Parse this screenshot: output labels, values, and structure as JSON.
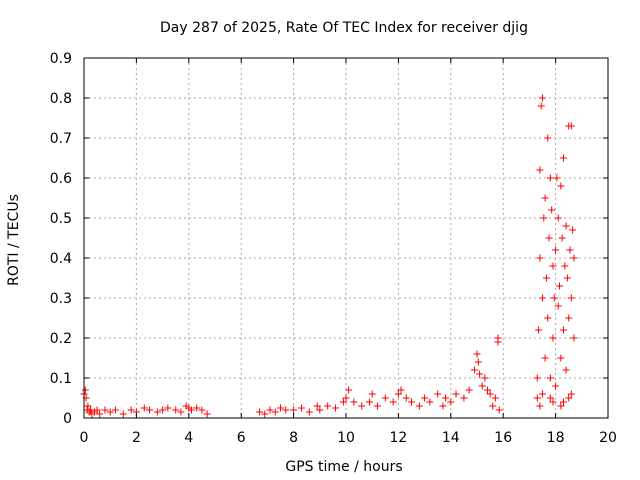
{
  "chart_data": {
    "type": "scatter",
    "title": "Day 287 of 2025, Rate Of TEC Index for receiver djig",
    "xlabel": "GPS time / hours",
    "ylabel": "ROTI / TECUs",
    "xlim": [
      0,
      20
    ],
    "ylim": [
      0,
      0.9
    ],
    "xticks": [
      "0",
      "2",
      "4",
      "6",
      "8",
      "10",
      "12",
      "14",
      "16",
      "18",
      "20"
    ],
    "yticks": [
      "0",
      "0.1",
      "0.2",
      "0.3",
      "0.4",
      "0.5",
      "0.6",
      "0.7",
      "0.8",
      "0.9"
    ],
    "grid": true,
    "marker": "+",
    "series": [
      {
        "name": "ROTI",
        "color": "#ff0000",
        "x": [
          0.0,
          0.05,
          0.08,
          0.12,
          0.15,
          0.2,
          0.25,
          0.3,
          0.4,
          0.5,
          0.6,
          0.8,
          1.0,
          1.2,
          1.5,
          1.8,
          2.0,
          2.3,
          2.5,
          2.8,
          3.0,
          3.2,
          3.5,
          3.7,
          3.9,
          4.0,
          4.1,
          4.3,
          4.5,
          4.7,
          6.7,
          6.9,
          7.1,
          7.3,
          7.5,
          7.7,
          8.0,
          8.3,
          8.6,
          8.9,
          9.0,
          9.3,
          9.6,
          9.9,
          10.0,
          10.1,
          10.3,
          10.6,
          10.9,
          11.0,
          11.2,
          11.5,
          11.8,
          12.0,
          12.1,
          12.3,
          12.5,
          12.8,
          13.0,
          13.2,
          13.5,
          13.7,
          13.8,
          14.0,
          14.2,
          14.5,
          14.7,
          14.9,
          15.0,
          15.05,
          15.1,
          15.2,
          15.3,
          15.4,
          15.5,
          15.6,
          15.7,
          15.8,
          15.8,
          15.85,
          17.3,
          17.3,
          17.35,
          17.4,
          17.4,
          17.45,
          17.5,
          17.5,
          17.55,
          17.6,
          17.6,
          17.65,
          17.7,
          17.7,
          17.75,
          17.8,
          17.8,
          17.85,
          17.9,
          17.9,
          17.95,
          18.0,
          18.0,
          18.05,
          18.1,
          18.1,
          18.15,
          18.2,
          18.2,
          18.25,
          18.3,
          18.3,
          18.35,
          18.4,
          18.4,
          18.45,
          18.5,
          18.5,
          18.55,
          18.6,
          18.6,
          18.65,
          18.7,
          18.7,
          18.5,
          18.2,
          17.9,
          17.5,
          17.4,
          17.8,
          18.3,
          18.6
        ],
        "y": [
          0.06,
          0.07,
          0.05,
          0.02,
          0.03,
          0.015,
          0.02,
          0.01,
          0.015,
          0.02,
          0.01,
          0.02,
          0.015,
          0.02,
          0.01,
          0.02,
          0.015,
          0.025,
          0.02,
          0.015,
          0.02,
          0.025,
          0.02,
          0.015,
          0.03,
          0.025,
          0.02,
          0.025,
          0.02,
          0.01,
          0.015,
          0.01,
          0.02,
          0.015,
          0.025,
          0.02,
          0.02,
          0.025,
          0.015,
          0.03,
          0.02,
          0.03,
          0.025,
          0.04,
          0.05,
          0.07,
          0.04,
          0.03,
          0.04,
          0.06,
          0.03,
          0.05,
          0.04,
          0.06,
          0.07,
          0.05,
          0.04,
          0.03,
          0.05,
          0.04,
          0.06,
          0.03,
          0.05,
          0.04,
          0.06,
          0.05,
          0.07,
          0.12,
          0.16,
          0.14,
          0.11,
          0.08,
          0.1,
          0.07,
          0.06,
          0.03,
          0.05,
          0.2,
          0.19,
          0.02,
          0.05,
          0.1,
          0.22,
          0.4,
          0.62,
          0.78,
          0.8,
          0.3,
          0.5,
          0.55,
          0.15,
          0.35,
          0.7,
          0.25,
          0.45,
          0.6,
          0.1,
          0.52,
          0.38,
          0.2,
          0.3,
          0.42,
          0.08,
          0.6,
          0.28,
          0.5,
          0.33,
          0.58,
          0.15,
          0.45,
          0.65,
          0.22,
          0.38,
          0.48,
          0.12,
          0.35,
          0.73,
          0.25,
          0.42,
          0.73,
          0.3,
          0.47,
          0.2,
          0.4,
          0.05,
          0.03,
          0.04,
          0.06,
          0.03,
          0.05,
          0.04,
          0.06
        ]
      }
    ]
  }
}
